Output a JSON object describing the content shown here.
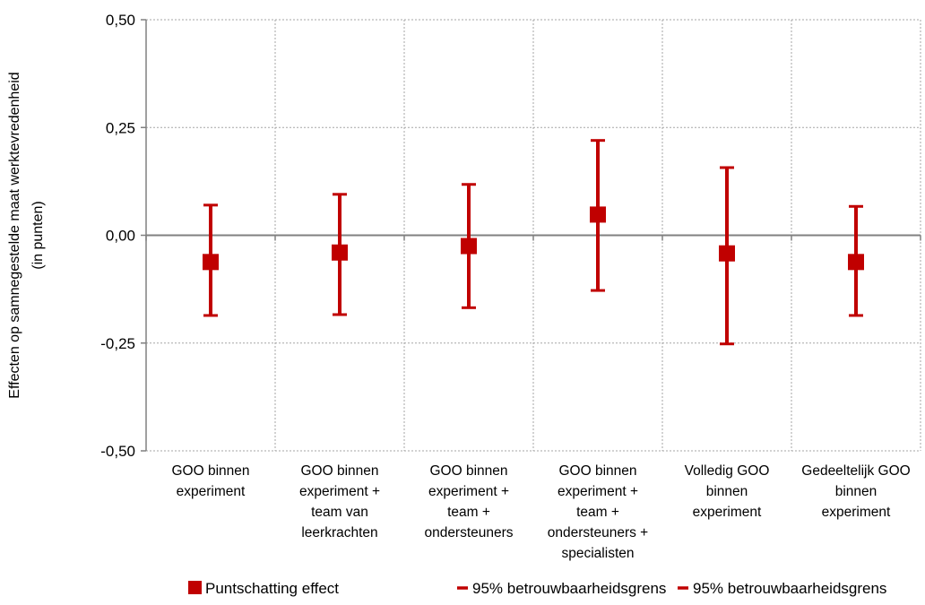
{
  "chart_data": {
    "type": "scatter",
    "title": "",
    "ylabel_lines": [
      "Effecten op samnegestelde maat werktevredenheid",
      "(in punten)"
    ],
    "xlabel": "",
    "ylim": [
      -0.5,
      0.5
    ],
    "yticks": [
      0.5,
      0.25,
      0.0,
      -0.25,
      -0.5
    ],
    "ytick_labels": [
      "0,50",
      "0,25",
      "0,00",
      "-0,25",
      "-0,50"
    ],
    "grid": true,
    "legend_position": "bottom",
    "categories": [
      [
        "GOO binnen",
        "experiment"
      ],
      [
        "GOO binnen",
        "experiment +",
        "team van",
        "leerkrachten"
      ],
      [
        "GOO binnen",
        "experiment +",
        "team +",
        "ondersteuners"
      ],
      [
        "GOO binnen",
        "experiment +",
        "team +",
        "ondersteuners +",
        "specialisten"
      ],
      [
        "Volledig GOO",
        "binnen",
        "experiment"
      ],
      [
        "Gedeeltelijk GOO",
        "binnen",
        "experiment"
      ]
    ],
    "series": [
      {
        "name": "Puntschatting effect",
        "values": [
          -0.062,
          -0.04,
          -0.025,
          0.048,
          -0.042,
          -0.062
        ]
      },
      {
        "name": "95% betrouwbaarheidsgrens",
        "values": [
          0.07,
          0.095,
          0.118,
          0.22,
          0.157,
          0.067
        ]
      },
      {
        "name": "95% betrouwbaarheidsgrens",
        "values": [
          -0.186,
          -0.184,
          -0.168,
          -0.128,
          -0.252,
          -0.186
        ]
      }
    ],
    "colors": {
      "marker": "#c00000",
      "axis": "#808080",
      "grid": "#a6a6a6"
    }
  }
}
